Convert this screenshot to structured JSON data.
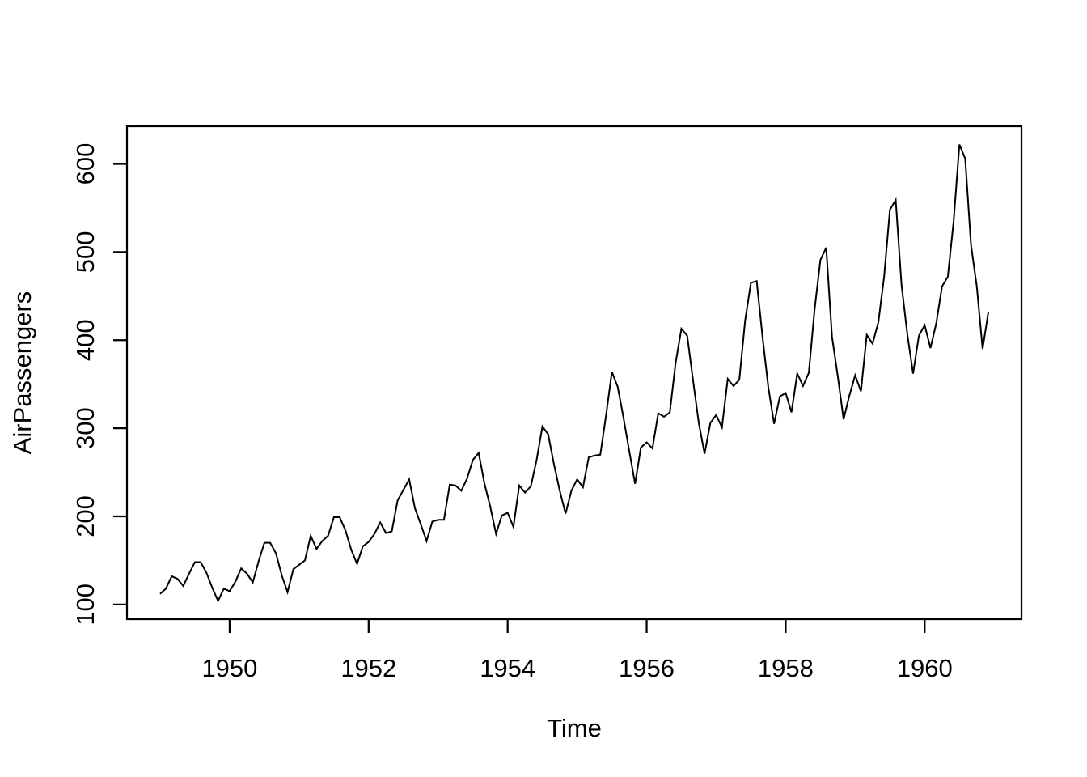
{
  "chart_data": {
    "type": "line",
    "title": "",
    "xlabel": "Time",
    "ylabel": "AirPassengers",
    "series": [
      {
        "name": "AirPassengers",
        "start_year": 1949,
        "frequency": 12,
        "values": [
          112,
          118,
          132,
          129,
          121,
          135,
          148,
          148,
          136,
          119,
          104,
          118,
          115,
          126,
          141,
          135,
          125,
          149,
          170,
          170,
          158,
          133,
          114,
          140,
          145,
          150,
          178,
          163,
          172,
          178,
          199,
          199,
          184,
          162,
          146,
          166,
          171,
          180,
          193,
          181,
          183,
          218,
          230,
          242,
          209,
          191,
          172,
          194,
          196,
          196,
          236,
          235,
          229,
          243,
          264,
          272,
          237,
          211,
          180,
          201,
          204,
          188,
          235,
          227,
          234,
          264,
          302,
          293,
          259,
          229,
          203,
          229,
          242,
          233,
          267,
          269,
          270,
          315,
          364,
          347,
          312,
          274,
          237,
          278,
          284,
          277,
          317,
          313,
          318,
          374,
          413,
          405,
          355,
          306,
          271,
          306,
          315,
          301,
          356,
          348,
          355,
          422,
          465,
          467,
          404,
          347,
          305,
          336,
          340,
          318,
          362,
          348,
          363,
          435,
          491,
          505,
          404,
          359,
          310,
          337,
          360,
          342,
          406,
          396,
          420,
          472,
          548,
          559,
          463,
          407,
          362,
          405,
          417,
          391,
          419,
          461,
          472,
          535,
          622,
          606,
          508,
          461,
          390,
          432
        ]
      }
    ],
    "x_ticks": [
      1950,
      1952,
      1954,
      1956,
      1958,
      1960
    ],
    "y_ticks": [
      100,
      200,
      300,
      400,
      500,
      600
    ],
    "x_range": [
      1948.523,
      1961.393
    ],
    "y_range": [
      83.3,
      642.7
    ],
    "grid": false,
    "legend": false,
    "line_color": "#000000",
    "background_color": "#ffffff"
  }
}
